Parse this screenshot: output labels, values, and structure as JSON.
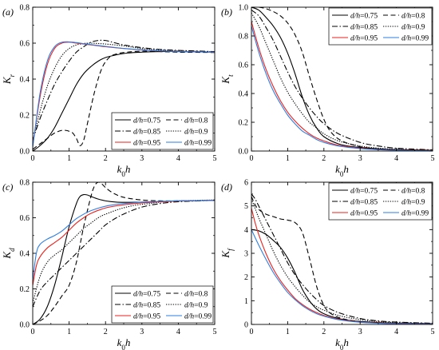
{
  "figure": {
    "series_style": {
      "d/h=0.75": {
        "color": "#000000",
        "dash": ""
      },
      "d/h=0.8": {
        "color": "#000000",
        "dash": "6,3.5"
      },
      "d/h=0.85": {
        "color": "#000000",
        "dash": "7,2.5,1.5,2.5"
      },
      "d/h=0.9": {
        "color": "#000000",
        "dash": "1.3,1.6"
      },
      "d/h=0.95": {
        "color": "#e8231f",
        "dash": ""
      },
      "d/h=0.99": {
        "color": "#2f7de1",
        "dash": ""
      }
    }
  },
  "chart_data": [
    {
      "panel": "(a)",
      "type": "line",
      "xlabel": "k0h",
      "ylabel": "Kr",
      "xlim": [
        0,
        5
      ],
      "ylim": [
        0,
        0.8
      ],
      "xticks": [
        "0",
        "1",
        "2",
        "3",
        "4",
        "5"
      ],
      "yticks": [
        "0.0",
        "0.2",
        "0.4",
        "0.6",
        "0.8"
      ],
      "legend_position": "lower-right",
      "series": [
        {
          "name": "d/h=0.75",
          "x": [
            0,
            0.2,
            0.4,
            0.6,
            0.8,
            1.0,
            1.2,
            1.4,
            1.6,
            1.8,
            2.0,
            2.3,
            2.6,
            3.0,
            3.5,
            4.0,
            5.0
          ],
          "y": [
            0.0,
            0.03,
            0.07,
            0.13,
            0.21,
            0.29,
            0.37,
            0.43,
            0.47,
            0.5,
            0.52,
            0.535,
            0.545,
            0.55,
            0.553,
            0.553,
            0.55
          ]
        },
        {
          "name": "d/h=0.8",
          "x": [
            0,
            0.2,
            0.4,
            0.6,
            0.8,
            0.9,
            1.0,
            1.1,
            1.2,
            1.3,
            1.4,
            1.5,
            1.7,
            1.9,
            2.1,
            2.3,
            2.6,
            3.0,
            3.5,
            4.0,
            5.0
          ],
          "y": [
            0.01,
            0.04,
            0.07,
            0.1,
            0.115,
            0.115,
            0.11,
            0.1,
            0.07,
            0.03,
            0.06,
            0.15,
            0.33,
            0.46,
            0.52,
            0.54,
            0.55,
            0.555,
            0.553,
            0.55,
            0.548
          ]
        },
        {
          "name": "d/h=0.85",
          "x": [
            0,
            0.2,
            0.4,
            0.6,
            0.8,
            1.0,
            1.2,
            1.4,
            1.6,
            1.8,
            2.0,
            2.2,
            2.5,
            3.0,
            3.5,
            4.0,
            5.0
          ],
          "y": [
            0.06,
            0.18,
            0.28,
            0.37,
            0.44,
            0.5,
            0.55,
            0.58,
            0.605,
            0.615,
            0.615,
            0.605,
            0.59,
            0.575,
            0.565,
            0.56,
            0.553
          ]
        },
        {
          "name": "d/h=0.9",
          "x": [
            0,
            0.2,
            0.4,
            0.6,
            0.8,
            1.0,
            1.2,
            1.4,
            1.6,
            2.0,
            2.5,
            3.0,
            3.5,
            4.0,
            5.0
          ],
          "y": [
            0.05,
            0.22,
            0.36,
            0.46,
            0.53,
            0.57,
            0.59,
            0.598,
            0.6,
            0.595,
            0.585,
            0.57,
            0.562,
            0.557,
            0.552
          ]
        },
        {
          "name": "d/h=0.95",
          "x": [
            0,
            0.2,
            0.4,
            0.6,
            0.8,
            1.0,
            1.2,
            1.4,
            1.6,
            2.0,
            2.5,
            3.0,
            3.5,
            4.0,
            5.0
          ],
          "y": [
            0.03,
            0.3,
            0.48,
            0.57,
            0.6,
            0.605,
            0.6,
            0.595,
            0.59,
            0.58,
            0.57,
            0.562,
            0.557,
            0.554,
            0.55
          ]
        },
        {
          "name": "d/h=0.99",
          "x": [
            0,
            0.2,
            0.4,
            0.6,
            0.8,
            1.0,
            1.2,
            1.4,
            1.6,
            2.0,
            2.5,
            3.0,
            3.5,
            4.0,
            5.0
          ],
          "y": [
            0.02,
            0.32,
            0.5,
            0.58,
            0.605,
            0.607,
            0.603,
            0.597,
            0.592,
            0.582,
            0.571,
            0.563,
            0.557,
            0.554,
            0.55
          ]
        }
      ]
    },
    {
      "panel": "(b)",
      "type": "line",
      "xlabel": "k0h",
      "ylabel": "Kt",
      "xlim": [
        0,
        5
      ],
      "ylim": [
        0,
        1.0
      ],
      "xticks": [
        "0",
        "1",
        "2",
        "3",
        "4",
        "5"
      ],
      "yticks": [
        "0.0",
        "0.2",
        "0.4",
        "0.6",
        "0.8",
        "1.0"
      ],
      "legend_position": "top-right",
      "series": [
        {
          "name": "d/h=0.75",
          "x": [
            0,
            0.2,
            0.4,
            0.6,
            0.8,
            1.0,
            1.2,
            1.4,
            1.6,
            1.8,
            2.0,
            2.4,
            2.8,
            3.5,
            4.0,
            5.0
          ],
          "y": [
            1.0,
            0.98,
            0.93,
            0.87,
            0.79,
            0.68,
            0.54,
            0.38,
            0.25,
            0.16,
            0.1,
            0.05,
            0.03,
            0.015,
            0.01,
            0.005
          ]
        },
        {
          "name": "d/h=0.8",
          "x": [
            0,
            0.2,
            0.4,
            0.6,
            0.8,
            1.0,
            1.2,
            1.4,
            1.6,
            1.8,
            2.0,
            2.2,
            2.5,
            3.0,
            3.5,
            4.0,
            5.0
          ],
          "y": [
            1.0,
            1.0,
            0.99,
            0.97,
            0.94,
            0.89,
            0.81,
            0.69,
            0.52,
            0.36,
            0.22,
            0.13,
            0.07,
            0.03,
            0.015,
            0.01,
            0.005
          ]
        },
        {
          "name": "d/h=0.85",
          "x": [
            0,
            0.2,
            0.4,
            0.6,
            0.8,
            1.0,
            1.2,
            1.4,
            1.6,
            1.8,
            2.0,
            2.4,
            3.0,
            3.5,
            4.0,
            5.0
          ],
          "y": [
            0.98,
            0.94,
            0.86,
            0.77,
            0.66,
            0.55,
            0.45,
            0.37,
            0.3,
            0.24,
            0.19,
            0.12,
            0.06,
            0.035,
            0.02,
            0.008
          ]
        },
        {
          "name": "d/h=0.9",
          "x": [
            0,
            0.2,
            0.4,
            0.6,
            0.8,
            1.0,
            1.2,
            1.4,
            1.6,
            1.8,
            2.0,
            2.4,
            3.0,
            3.5,
            4.0,
            5.0
          ],
          "y": [
            0.96,
            0.87,
            0.75,
            0.63,
            0.51,
            0.41,
            0.33,
            0.26,
            0.2,
            0.16,
            0.12,
            0.07,
            0.035,
            0.02,
            0.012,
            0.005
          ]
        },
        {
          "name": "d/h=0.95",
          "x": [
            0,
            0.2,
            0.4,
            0.6,
            0.8,
            1.0,
            1.2,
            1.4,
            1.6,
            1.8,
            2.0,
            2.4,
            3.0,
            3.5,
            4.0,
            5.0
          ],
          "y": [
            0.9,
            0.72,
            0.57,
            0.45,
            0.35,
            0.27,
            0.21,
            0.16,
            0.12,
            0.09,
            0.07,
            0.04,
            0.02,
            0.01,
            0.006,
            0.003
          ]
        },
        {
          "name": "d/h=0.99",
          "x": [
            0,
            0.2,
            0.4,
            0.6,
            0.8,
            1.0,
            1.2,
            1.4,
            1.6,
            1.8,
            2.0,
            2.4,
            3.0,
            3.5,
            4.0,
            5.0
          ],
          "y": [
            0.87,
            0.69,
            0.54,
            0.42,
            0.33,
            0.25,
            0.19,
            0.14,
            0.11,
            0.08,
            0.06,
            0.035,
            0.017,
            0.009,
            0.005,
            0.002
          ]
        }
      ]
    },
    {
      "panel": "(c)",
      "type": "line",
      "xlabel": "k0h",
      "ylabel": "Kd",
      "xlim": [
        0,
        5
      ],
      "ylim": [
        0,
        0.8
      ],
      "xticks": [
        "0",
        "1",
        "2",
        "3",
        "4",
        "5"
      ],
      "yticks": [
        "0.0",
        "0.2",
        "0.4",
        "0.6",
        "0.8"
      ],
      "legend_position": "lower-right",
      "series": [
        {
          "name": "d/h=0.75",
          "x": [
            0,
            0.2,
            0.4,
            0.6,
            0.8,
            1.0,
            1.2,
            1.3,
            1.4,
            1.5,
            1.6,
            1.8,
            2.0,
            2.3,
            2.6,
            3.0,
            3.5,
            4.0,
            5.0
          ],
          "y": [
            0.0,
            0.03,
            0.1,
            0.22,
            0.38,
            0.55,
            0.68,
            0.72,
            0.73,
            0.728,
            0.72,
            0.705,
            0.695,
            0.688,
            0.687,
            0.688,
            0.691,
            0.694,
            0.698
          ]
        },
        {
          "name": "d/h=0.8",
          "x": [
            0,
            0.2,
            0.4,
            0.6,
            0.8,
            1.0,
            1.2,
            1.4,
            1.6,
            1.7,
            1.8,
            1.9,
            2.0,
            2.2,
            2.5,
            3.0,
            3.5,
            4.0,
            5.0
          ],
          "y": [
            0.0,
            0.02,
            0.05,
            0.1,
            0.16,
            0.22,
            0.35,
            0.55,
            0.72,
            0.78,
            0.8,
            0.79,
            0.77,
            0.74,
            0.715,
            0.7,
            0.695,
            0.695,
            0.697
          ]
        },
        {
          "name": "d/h=0.85",
          "x": [
            0,
            0.2,
            0.4,
            0.6,
            0.8,
            1.0,
            1.2,
            1.4,
            1.6,
            1.8,
            2.0,
            2.3,
            2.6,
            3.0,
            3.5,
            4.0,
            5.0
          ],
          "y": [
            0.1,
            0.19,
            0.24,
            0.28,
            0.32,
            0.36,
            0.4,
            0.44,
            0.48,
            0.52,
            0.56,
            0.6,
            0.63,
            0.66,
            0.68,
            0.69,
            0.698
          ]
        },
        {
          "name": "d/h=0.9",
          "x": [
            0,
            0.2,
            0.4,
            0.6,
            0.8,
            1.0,
            1.2,
            1.4,
            1.6,
            1.8,
            2.0,
            2.4,
            2.8,
            3.2,
            3.6,
            4.0,
            5.0
          ],
          "y": [
            0.12,
            0.27,
            0.35,
            0.39,
            0.42,
            0.46,
            0.5,
            0.54,
            0.57,
            0.6,
            0.62,
            0.65,
            0.67,
            0.68,
            0.69,
            0.695,
            0.7
          ]
        },
        {
          "name": "d/h=0.95",
          "x": [
            0,
            0.1,
            0.2,
            0.4,
            0.6,
            0.8,
            1.0,
            1.2,
            1.4,
            1.6,
            2.0,
            2.4,
            2.8,
            3.2,
            3.6,
            4.0,
            5.0
          ],
          "y": [
            0.22,
            0.33,
            0.38,
            0.43,
            0.46,
            0.49,
            0.53,
            0.57,
            0.6,
            0.625,
            0.655,
            0.67,
            0.68,
            0.686,
            0.69,
            0.694,
            0.698
          ]
        },
        {
          "name": "d/h=0.99",
          "x": [
            0,
            0.1,
            0.2,
            0.4,
            0.6,
            0.8,
            1.0,
            1.2,
            1.4,
            1.6,
            2.0,
            2.4,
            2.8,
            3.2,
            3.6,
            4.0,
            5.0
          ],
          "y": [
            0.25,
            0.4,
            0.45,
            0.48,
            0.5,
            0.525,
            0.56,
            0.595,
            0.62,
            0.64,
            0.665,
            0.678,
            0.685,
            0.69,
            0.693,
            0.695,
            0.698
          ]
        }
      ]
    },
    {
      "panel": "(d)",
      "type": "line",
      "xlabel": "k0h",
      "ylabel": "Kf",
      "xlim": [
        0,
        5
      ],
      "ylim": [
        0,
        6
      ],
      "xticks": [
        "0",
        "1",
        "2",
        "3",
        "4",
        "5"
      ],
      "yticks": [
        "0",
        "1",
        "2",
        "3",
        "4",
        "5",
        "6"
      ],
      "legend_position": "top-right",
      "series": [
        {
          "name": "d/h=0.75",
          "x": [
            0,
            0.2,
            0.4,
            0.6,
            0.8,
            1.0,
            1.2,
            1.4,
            1.6,
            1.8,
            2.0,
            2.4,
            2.8,
            3.5,
            4.0,
            5.0
          ],
          "y": [
            4.0,
            3.95,
            3.8,
            3.55,
            3.25,
            2.8,
            2.2,
            1.5,
            1.0,
            0.65,
            0.45,
            0.25,
            0.15,
            0.08,
            0.05,
            0.03
          ]
        },
        {
          "name": "d/h=0.8",
          "x": [
            0,
            0.1,
            0.2,
            0.4,
            0.6,
            0.8,
            1.0,
            1.2,
            1.4,
            1.6,
            1.8,
            2.0,
            2.2,
            2.5,
            3.0,
            3.5,
            4.0,
            5.0
          ],
          "y": [
            5.4,
            5.05,
            4.85,
            4.65,
            4.55,
            4.45,
            4.4,
            4.3,
            3.9,
            2.8,
            1.6,
            0.8,
            0.45,
            0.25,
            0.12,
            0.07,
            0.05,
            0.03
          ]
        },
        {
          "name": "d/h=0.85",
          "x": [
            0,
            0.1,
            0.2,
            0.4,
            0.6,
            0.8,
            1.0,
            1.2,
            1.4,
            1.6,
            1.8,
            2.0,
            2.4,
            3.0,
            3.5,
            4.0,
            5.0
          ],
          "y": [
            5.5,
            5.3,
            5.0,
            4.4,
            3.8,
            3.2,
            2.6,
            2.1,
            1.7,
            1.35,
            1.05,
            0.8,
            0.5,
            0.25,
            0.15,
            0.1,
            0.05
          ]
        },
        {
          "name": "d/h=0.9",
          "x": [
            0,
            0.1,
            0.2,
            0.4,
            0.6,
            0.8,
            1.0,
            1.2,
            1.4,
            1.6,
            1.8,
            2.0,
            2.4,
            3.0,
            3.5,
            4.0,
            5.0
          ],
          "y": [
            5.3,
            4.9,
            4.5,
            3.8,
            3.1,
            2.5,
            2.0,
            1.6,
            1.25,
            0.95,
            0.75,
            0.6,
            0.38,
            0.2,
            0.12,
            0.08,
            0.04
          ]
        },
        {
          "name": "d/h=0.95",
          "x": [
            0,
            0.1,
            0.2,
            0.4,
            0.6,
            0.8,
            1.0,
            1.2,
            1.4,
            1.6,
            1.8,
            2.0,
            2.4,
            3.0,
            3.5,
            4.0,
            5.0
          ],
          "y": [
            4.9,
            4.3,
            3.8,
            3.0,
            2.35,
            1.85,
            1.45,
            1.1,
            0.85,
            0.65,
            0.5,
            0.38,
            0.22,
            0.1,
            0.06,
            0.04,
            0.02
          ]
        },
        {
          "name": "d/h=0.99",
          "x": [
            0,
            0.2,
            0.4,
            0.6,
            0.8,
            1.0,
            1.2,
            1.4,
            1.6,
            1.8,
            2.0,
            2.4,
            3.0,
            3.5,
            4.0,
            5.0
          ],
          "y": [
            4.0,
            3.35,
            2.75,
            2.2,
            1.75,
            1.35,
            1.05,
            0.8,
            0.6,
            0.45,
            0.35,
            0.2,
            0.09,
            0.05,
            0.03,
            0.015
          ]
        }
      ]
    }
  ]
}
